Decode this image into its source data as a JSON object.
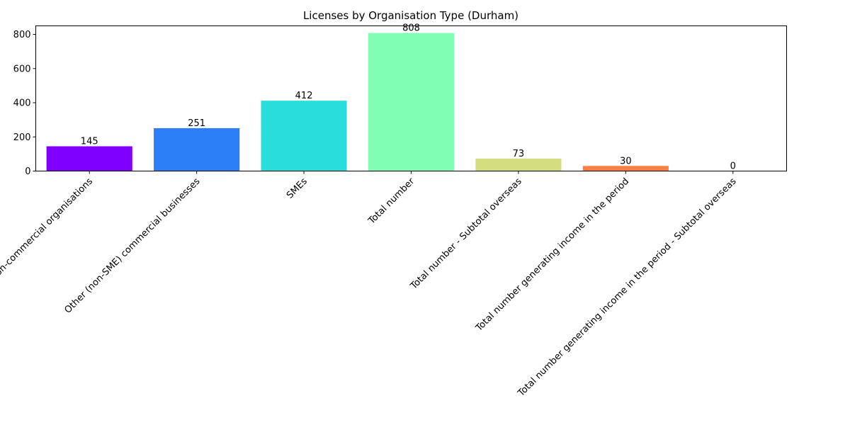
{
  "chart_data": {
    "type": "bar",
    "title": "Licenses by Organisation Type (Durham)",
    "xlabel": "",
    "ylabel": "",
    "categories": [
      "Non-commercial organisations",
      "Other (non-SME) commercial businesses",
      "SMEs",
      "Total number",
      "Total number - Subtotal overseas",
      "Total number generating income in the period",
      "Total number generating income in the period - Subtotal overseas"
    ],
    "values": [
      145,
      251,
      412,
      808,
      73,
      30,
      0
    ],
    "colors": [
      "#8000ff",
      "#2c7ef7",
      "#2adddd",
      "#80ffb4",
      "#d4dd80",
      "#ff7f41",
      "#ff0000"
    ],
    "ylim": [
      0,
      850
    ],
    "yticks": [
      0,
      200,
      400,
      600,
      800
    ],
    "grid": false
  }
}
